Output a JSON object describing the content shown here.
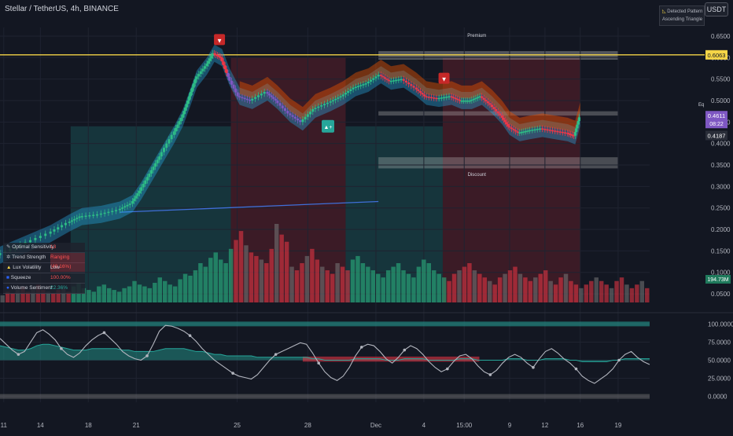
{
  "header": {
    "title": "Stellar / TetherUS, 4h, BINANCE"
  },
  "currency_button": "USDT",
  "pattern_box": {
    "line1": "Detected Pattern",
    "line2": "Ascending Triangle",
    "icon": "triangle-icon"
  },
  "zones": {
    "premium": "Premium",
    "discount": "Discount",
    "eq": "Eq"
  },
  "price_tags": {
    "resistance": "0.6063",
    "current": "0.4611",
    "countdown": "08:22",
    "low": "0.4187",
    "volume": "194.73M"
  },
  "signals": {
    "buy": "▲+",
    "sell": "▼"
  },
  "info_table": [
    {
      "icon": "pin-icon",
      "label": "Optimal Sensitivity",
      "value": "13",
      "value_color": "#ff5252"
    },
    {
      "icon": "gear-icon",
      "label": "Trend Strength",
      "value": "Ranging (48.16%)",
      "value_color": "#ff5252"
    },
    {
      "icon": "warning-icon",
      "label": "Lux Volatility",
      "value": "Low",
      "value_color": "#d1d4dc"
    },
    {
      "icon": "square-icon",
      "label": "Squeeze",
      "value": "100.00%",
      "value_color": "#ff5252"
    },
    {
      "icon": "drop-icon",
      "label": "Volume Sentiment",
      "value": "22.36%",
      "value_color": "#26a69a"
    }
  ],
  "colors": {
    "bull": "#2ebd85",
    "bear": "#f23645",
    "purple": "#7e57c2",
    "gold": "#f5d547",
    "band_top": "#e65100"
  },
  "chart_data": [
    {
      "type": "line",
      "title": "",
      "y_axis": {
        "ticks": [
          0.05,
          0.1,
          0.15,
          0.2,
          0.25,
          0.3,
          0.35,
          0.4,
          0.45,
          0.5,
          0.55,
          0.6,
          0.65
        ],
        "tick_labels": [
          "0.0500",
          "0.1000",
          "0.1500",
          "0.2000",
          "0.2500",
          "0.3000",
          "0.3500",
          "0.4000",
          "0.4500",
          "0.5000",
          "0.5500",
          "0.6000",
          "0.6500"
        ],
        "range": [
          0.03,
          0.67
        ]
      },
      "x_axis": {
        "tick_labels": [
          "11",
          "14",
          "18",
          "21",
          "25",
          "28",
          "Dec",
          "4",
          "15:00",
          "9",
          "12",
          "16",
          "19"
        ],
        "tick_pos": [
          3,
          32,
          70,
          108,
          188,
          244,
          298,
          336,
          368,
          404,
          432,
          460,
          490
        ],
        "range": [
          0,
          515
        ]
      },
      "resistance_level": 0.6063,
      "last_price": 0.4611,
      "last_low": 0.4187,
      "price_path": [
        [
          0,
          0.14
        ],
        [
          20,
          0.165
        ],
        [
          40,
          0.19
        ],
        [
          55,
          0.215
        ],
        [
          65,
          0.23
        ],
        [
          80,
          0.235
        ],
        [
          95,
          0.245
        ],
        [
          105,
          0.26
        ],
        [
          112,
          0.29
        ],
        [
          120,
          0.33
        ],
        [
          128,
          0.37
        ],
        [
          138,
          0.42
        ],
        [
          145,
          0.46
        ],
        [
          150,
          0.5
        ],
        [
          156,
          0.55
        ],
        [
          164,
          0.58
        ],
        [
          170,
          0.61
        ],
        [
          176,
          0.6
        ],
        [
          182,
          0.555
        ],
        [
          190,
          0.51
        ],
        [
          200,
          0.5
        ],
        [
          212,
          0.52
        ],
        [
          220,
          0.5
        ],
        [
          230,
          0.47
        ],
        [
          240,
          0.45
        ],
        [
          250,
          0.48
        ],
        [
          262,
          0.495
        ],
        [
          272,
          0.51
        ],
        [
          282,
          0.53
        ],
        [
          292,
          0.54
        ],
        [
          302,
          0.56
        ],
        [
          310,
          0.545
        ],
        [
          320,
          0.55
        ],
        [
          330,
          0.53
        ],
        [
          338,
          0.51
        ],
        [
          348,
          0.505
        ],
        [
          358,
          0.51
        ],
        [
          366,
          0.5
        ],
        [
          374,
          0.5
        ],
        [
          382,
          0.51
        ],
        [
          390,
          0.49
        ],
        [
          398,
          0.465
        ],
        [
          404,
          0.44
        ],
        [
          412,
          0.425
        ],
        [
          420,
          0.43
        ],
        [
          430,
          0.435
        ],
        [
          440,
          0.43
        ],
        [
          450,
          0.425
        ],
        [
          456,
          0.418
        ],
        [
          460,
          0.461
        ]
      ],
      "trend_line": {
        "from": [
          95,
          0.24
        ],
        "to": [
          300,
          0.265
        ]
      },
      "bull_zones": [
        [
          56,
          183
        ],
        [
          274,
          351
        ]
      ],
      "bear_zones": [
        [
          183,
          274
        ],
        [
          351,
          460
        ]
      ],
      "premium_zone": [
        0.595,
        0.615
      ],
      "eq_zone": [
        0.465,
        0.475
      ],
      "discount_zone": [
        0.342,
        0.368
      ],
      "volume": [
        4,
        6,
        5,
        7,
        9,
        6,
        8,
        10,
        7,
        6,
        5,
        7,
        8,
        6,
        9,
        11,
        8,
        7,
        6,
        9,
        10,
        8,
        7,
        6,
        8,
        9,
        12,
        10,
        9,
        8,
        11,
        14,
        12,
        10,
        9,
        13,
        16,
        15,
        18,
        22,
        20,
        25,
        28,
        24,
        22,
        30,
        35,
        40,
        32,
        28,
        26,
        24,
        22,
        30,
        44,
        38,
        34,
        20,
        18,
        22,
        26,
        30,
        24,
        20,
        18,
        16,
        22,
        20,
        18,
        24,
        26,
        22,
        20,
        18,
        16,
        14,
        18,
        20,
        22,
        18,
        16,
        14,
        20,
        24,
        22,
        18,
        16,
        14,
        12,
        16,
        18,
        20,
        22,
        18,
        16,
        14,
        12,
        10,
        14,
        16,
        18,
        20,
        16,
        14,
        12,
        14,
        16,
        18,
        12,
        10,
        14,
        16,
        12,
        10,
        8,
        10,
        12,
        14,
        12,
        10,
        8,
        12,
        14,
        10,
        8,
        10,
        12,
        8
      ]
    },
    {
      "type": "line",
      "title": "",
      "y_axis": {
        "ticks": [
          0,
          25,
          50,
          75,
          100
        ],
        "tick_labels": [
          "0.0000",
          "25.0000",
          "50.0000",
          "75.0000",
          "100.0000"
        ],
        "range": [
          -8,
          108
        ]
      },
      "series": [
        {
          "values": [
            80,
            72,
            64,
            58,
            62,
            75,
            88,
            92,
            86,
            78,
            66,
            58,
            54,
            60,
            70,
            78,
            84,
            88,
            80,
            72,
            62,
            56,
            52,
            50,
            56,
            72,
            90,
            98,
            97,
            94,
            90,
            84,
            76,
            66,
            58,
            50,
            44,
            38,
            32,
            28,
            26,
            24,
            30,
            40,
            50,
            58,
            62,
            66,
            70,
            74,
            72,
            60,
            46,
            34,
            26,
            22,
            28,
            40,
            56,
            68,
            72,
            70,
            62,
            52,
            46,
            54,
            64,
            70,
            66,
            58,
            48,
            40,
            34,
            38,
            48,
            56,
            58,
            52,
            42,
            34,
            30,
            36,
            46,
            54,
            58,
            54,
            46,
            40,
            52,
            62,
            66,
            60,
            52,
            46,
            38,
            28,
            22,
            18,
            24,
            30,
            38,
            50,
            58,
            62,
            54,
            48,
            44
          ]
        },
        {
          "values": [
            70,
            68,
            66,
            64,
            64,
            66,
            70,
            72,
            72,
            70,
            68,
            66,
            64,
            64,
            64,
            66,
            66,
            66,
            66,
            66,
            64,
            64,
            62,
            62,
            62,
            62,
            64,
            66,
            66,
            66,
            66,
            64,
            62,
            62,
            60,
            58,
            58,
            56,
            56,
            56,
            56,
            56,
            54,
            54,
            54,
            54,
            54,
            54,
            54,
            54,
            54,
            52,
            52,
            50,
            50,
            50,
            50,
            50,
            52,
            52,
            52,
            52,
            52,
            50,
            50,
            50,
            52,
            52,
            52,
            52,
            50,
            50,
            50,
            50,
            50,
            52,
            52,
            52,
            50,
            50,
            50,
            50,
            50,
            52,
            52,
            52,
            50,
            50,
            50,
            52,
            52,
            52,
            52,
            50,
            50,
            48,
            48,
            48,
            48,
            48,
            50,
            50,
            52,
            52,
            52,
            52,
            52
          ]
        }
      ]
    }
  ]
}
